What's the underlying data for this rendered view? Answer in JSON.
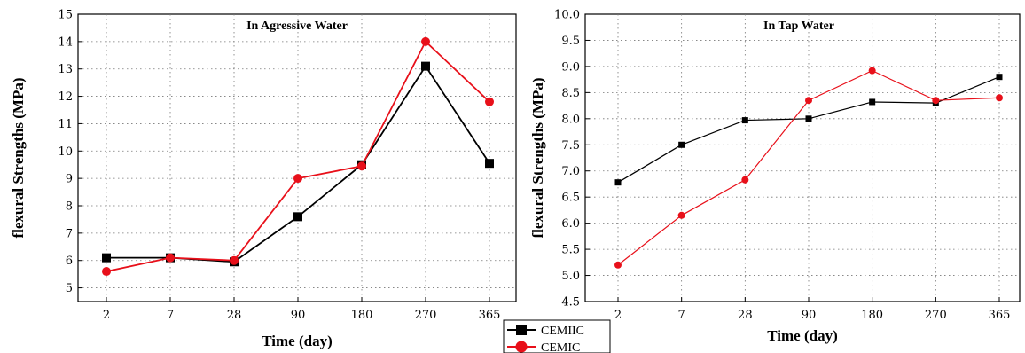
{
  "chart_data": [
    {
      "type": "line",
      "title": "In Agressive Water",
      "xlabel": "Time (day)",
      "ylabel": "flexural Strengths (MPa)",
      "categories": [
        "2",
        "7",
        "28",
        "90",
        "180",
        "270",
        "365"
      ],
      "ylim": [
        4.5,
        15
      ],
      "yticks": [
        "5",
        "6",
        "7",
        "8",
        "9",
        "10",
        "11",
        "12",
        "13",
        "14",
        "15"
      ],
      "grid": "dotted",
      "series": [
        {
          "name": "CEMIIC",
          "color": "#000000",
          "marker": "square",
          "values": [
            6.1,
            6.1,
            5.95,
            7.6,
            9.5,
            13.1,
            9.55
          ]
        },
        {
          "name": "CEMIC",
          "color": "#e8101a",
          "marker": "circle",
          "values": [
            5.6,
            6.1,
            6.0,
            9.0,
            9.45,
            14.0,
            11.8
          ]
        }
      ]
    },
    {
      "type": "line",
      "title": "In Tap Water",
      "xlabel": "Time (day)",
      "ylabel": "flexural Strengths (MPa)",
      "categories": [
        "2",
        "7",
        "28",
        "90",
        "180",
        "270",
        "365"
      ],
      "ylim": [
        4.5,
        10.0
      ],
      "yticks": [
        "4.5",
        "5.0",
        "5.5",
        "6.0",
        "6.5",
        "7.0",
        "7.5",
        "8.0",
        "8.5",
        "9.0",
        "9.5",
        "10.0"
      ],
      "grid": "dotted",
      "series": [
        {
          "name": "CEMIIC",
          "color": "#000000",
          "marker": "square",
          "values": [
            6.78,
            7.5,
            7.97,
            8.0,
            8.32,
            8.3,
            8.8
          ]
        },
        {
          "name": "CEMIC",
          "color": "#e8101a",
          "marker": "circle",
          "values": [
            5.2,
            6.15,
            6.83,
            8.35,
            8.92,
            8.35,
            8.4
          ]
        }
      ]
    }
  ],
  "legend": {
    "placement": "bottom-center",
    "items": [
      {
        "label": "CEMIIC",
        "color": "#000000",
        "marker": "square"
      },
      {
        "label": "CEMIC",
        "color": "#e8101a",
        "marker": "circle"
      }
    ]
  }
}
